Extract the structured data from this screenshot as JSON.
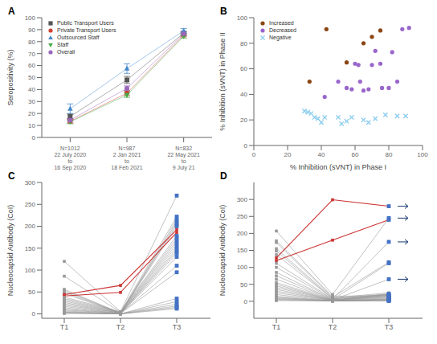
{
  "chart_data": [
    {
      "type": "line",
      "title": "A",
      "ylabel": "Seropositivity (%)",
      "ylim": [
        0,
        100
      ],
      "yticks": [
        0,
        10,
        20,
        30,
        40,
        50,
        60,
        70,
        80,
        90,
        100
      ],
      "grid": false,
      "legend": "upper left",
      "categories": [
        "N=1012\n22 July 2020\nto\n16 Sep 2020",
        "N=987\n2 Jan 2021\nto\n18 Feb 2021",
        "N=832\n22 May 2021\nto\n9 July 21"
      ],
      "series": [
        {
          "name": "Public Transport Users",
          "color": "#555555",
          "marker": "square",
          "values": [
            17.5,
            48.0,
            87.0
          ],
          "yerr": [
            2.0,
            3.0,
            1.5
          ]
        },
        {
          "name": "Private Transport Users",
          "color": "#cc4433",
          "marker": "circle",
          "values": [
            13.5,
            37.0,
            85.5
          ],
          "yerr": [
            1.5,
            2.0,
            1.5
          ]
        },
        {
          "name": "Outsourced Staff",
          "color": "#4488cc",
          "marker": "triangle",
          "values": [
            24.0,
            57.5,
            89.0
          ],
          "yerr": [
            4.0,
            4.0,
            2.0
          ]
        },
        {
          "name": "Staff",
          "color": "#44aa44",
          "marker": "triangle-down",
          "values": [
            13.0,
            35.5,
            84.5
          ],
          "yerr": [
            1.5,
            2.0,
            1.5
          ]
        },
        {
          "name": "Overall",
          "color": "#9966bb",
          "marker": "circle",
          "values": [
            14.5,
            41.0,
            86.5
          ],
          "yerr": [
            1.2,
            2.0,
            1.5
          ]
        }
      ]
    },
    {
      "type": "scatter",
      "title": "B",
      "xlabel": "% Inhibition (sVNT) in Phase I",
      "ylabel": "% Inhibition (sVNT) in Phase II",
      "xlim": [
        0,
        100
      ],
      "ylim": [
        0,
        100
      ],
      "xticks": [
        0,
        20,
        40,
        60,
        80,
        100
      ],
      "yticks": [
        0,
        20,
        40,
        60,
        80,
        100
      ],
      "grid": false,
      "legend": "upper left",
      "series": [
        {
          "name": "Increased",
          "color": "#8B4513",
          "marker": "circle",
          "x": [
            43,
            33,
            55,
            65,
            70,
            75
          ],
          "values": [
            91,
            50,
            65,
            80,
            85,
            90
          ]
        },
        {
          "name": "Decreased",
          "color": "#9966cc",
          "marker": "circle",
          "x": [
            42,
            50,
            55,
            58,
            60,
            62,
            63,
            65,
            68,
            70,
            72,
            75,
            76,
            80,
            82,
            85,
            88,
            92
          ],
          "values": [
            38,
            50,
            45,
            44,
            64,
            63,
            50,
            43,
            44,
            63,
            74,
            64,
            45,
            45,
            73,
            50,
            91,
            92
          ]
        },
        {
          "name": "Negative",
          "color": "#88ccee",
          "marker": "x",
          "x": [
            30,
            32,
            34,
            36,
            38,
            40,
            42,
            50,
            52,
            55,
            58,
            65,
            68,
            72,
            78,
            85,
            90
          ],
          "values": [
            27,
            26,
            25,
            22,
            21,
            18,
            22,
            22,
            17,
            19,
            22,
            20,
            18,
            21,
            24,
            23,
            23
          ]
        }
      ]
    },
    {
      "type": "line",
      "title": "C",
      "ylabel": "Nucleocapsid Antibody (CoI)",
      "ylim": [
        -10,
        300
      ],
      "yticks": [
        0,
        50,
        100,
        150,
        200,
        250,
        300
      ],
      "grid": false,
      "categories": [
        "T1",
        "T2",
        "T3"
      ],
      "series": [
        {
          "color": "#999999",
          "marker": "square",
          "values": [
            120,
            5,
            270
          ]
        },
        {
          "color": "#999999",
          "marker": "square",
          "values": [
            86,
            4,
            222
          ]
        },
        {
          "color": "#999999",
          "marker": "square",
          "values": [
            56,
            2,
            215
          ]
        },
        {
          "color": "#999999",
          "marker": "square",
          "values": [
            53,
            2,
            210
          ]
        },
        {
          "color": "#999999",
          "marker": "square",
          "values": [
            50,
            2,
            205
          ]
        },
        {
          "color": "#999999",
          "marker": "square",
          "values": [
            47,
            1,
            200
          ]
        },
        {
          "color": "#cc3333",
          "marker": "square",
          "values": [
            44,
            65,
            192
          ]
        },
        {
          "color": "#cc3333",
          "marker": "square",
          "values": [
            41,
            49,
            186
          ]
        },
        {
          "color": "#999999",
          "marker": "square",
          "values": [
            38,
            5,
            178
          ]
        },
        {
          "color": "#999999",
          "marker": "square",
          "values": [
            35,
            4,
            172
          ]
        },
        {
          "color": "#999999",
          "marker": "square",
          "values": [
            32,
            3,
            166
          ]
        },
        {
          "color": "#999999",
          "marker": "square",
          "values": [
            29,
            3,
            160
          ]
        },
        {
          "color": "#999999",
          "marker": "square",
          "values": [
            26,
            2,
            154
          ]
        },
        {
          "color": "#999999",
          "marker": "square",
          "values": [
            23,
            2,
            148
          ]
        },
        {
          "color": "#999999",
          "marker": "square",
          "values": [
            20,
            2,
            143
          ]
        },
        {
          "color": "#999999",
          "marker": "square",
          "values": [
            17,
            1,
            138
          ]
        },
        {
          "color": "#999999",
          "marker": "square",
          "values": [
            14,
            1,
            130
          ]
        },
        {
          "color": "#999999",
          "marker": "square",
          "values": [
            11,
            1,
            110
          ]
        },
        {
          "color": "#999999",
          "marker": "square",
          "values": [
            9,
            1,
            95
          ]
        },
        {
          "color": "#999999",
          "marker": "square",
          "values": [
            7,
            0,
            35
          ]
        },
        {
          "color": "#999999",
          "marker": "square",
          "values": [
            5,
            0,
            28
          ]
        },
        {
          "color": "#999999",
          "marker": "square",
          "values": [
            4,
            0,
            22
          ]
        },
        {
          "color": "#999999",
          "marker": "square",
          "values": [
            3,
            0,
            18
          ]
        },
        {
          "color": "#999999",
          "marker": "square",
          "values": [
            2,
            0,
            15
          ]
        },
        {
          "color": "#999999",
          "marker": "square",
          "values": [
            1,
            0,
            12
          ]
        },
        {
          "type": "scatter",
          "color": "#4472c4",
          "marker": "square",
          "x": [
            "T3",
            "T3",
            "T3",
            "T3",
            "T3",
            "T3",
            "T3",
            "T3",
            "T3",
            "T3",
            "T3",
            "T3",
            "T3",
            "T3",
            "T3",
            "T3",
            "T3",
            "T3",
            "T3",
            "T3",
            "T3",
            "T3",
            "T3"
          ],
          "values": [
            270,
            222,
            215,
            210,
            205,
            200,
            178,
            172,
            166,
            160,
            154,
            148,
            143,
            138,
            130,
            110,
            95,
            35,
            28,
            22,
            18,
            15,
            12
          ]
        }
      ]
    },
    {
      "type": "line",
      "title": "D",
      "ylabel": "Nucleocapsid Antibody (CoI)",
      "ylim": [
        -50,
        350
      ],
      "yticks": [
        0,
        50,
        100,
        150,
        200,
        250,
        300
      ],
      "grid": false,
      "categories": [
        "T1",
        "T2",
        "T3"
      ],
      "series": [
        {
          "color": "#999999",
          "marker": "square",
          "values": [
            207,
            20,
            245
          ]
        },
        {
          "color": "#999999",
          "marker": "square",
          "values": [
            178,
            15,
            17
          ]
        },
        {
          "color": "#999999",
          "marker": "square",
          "values": [
            173,
            12,
            115
          ]
        },
        {
          "color": "#999999",
          "marker": "square",
          "values": [
            155,
            10,
            25
          ]
        },
        {
          "color": "#999999",
          "marker": "square",
          "values": [
            148,
            8,
            20
          ]
        },
        {
          "color": "#999999",
          "marker": "square",
          "values": [
            137,
            8,
            22
          ]
        },
        {
          "color": "#cc3333",
          "marker": "square",
          "values": [
            128,
            299,
            280
          ]
        },
        {
          "color": "#cc3333",
          "marker": "square",
          "values": [
            120,
            180,
            240
          ]
        },
        {
          "color": "#999999",
          "marker": "square",
          "values": [
            112,
            7,
            18
          ]
        },
        {
          "color": "#999999",
          "marker": "square",
          "values": [
            100,
            6,
            175
          ]
        },
        {
          "color": "#999999",
          "marker": "square",
          "values": [
            85,
            5,
            15
          ]
        },
        {
          "color": "#999999",
          "marker": "square",
          "values": [
            75,
            5,
            112
          ]
        },
        {
          "color": "#999999",
          "marker": "square",
          "values": [
            65,
            4,
            14
          ]
        },
        {
          "color": "#999999",
          "marker": "square",
          "values": [
            55,
            4,
            65
          ]
        },
        {
          "color": "#999999",
          "marker": "square",
          "values": [
            50,
            3,
            22
          ]
        },
        {
          "color": "#999999",
          "marker": "square",
          "values": [
            45,
            3,
            20
          ]
        },
        {
          "color": "#999999",
          "marker": "square",
          "values": [
            40,
            3,
            18
          ]
        },
        {
          "color": "#999999",
          "marker": "square",
          "values": [
            35,
            2,
            15
          ]
        },
        {
          "color": "#999999",
          "marker": "square",
          "values": [
            30,
            2,
            12
          ]
        },
        {
          "color": "#999999",
          "marker": "square",
          "values": [
            25,
            2,
            10
          ]
        },
        {
          "color": "#999999",
          "marker": "square",
          "values": [
            20,
            1,
            8
          ]
        },
        {
          "color": "#999999",
          "marker": "square",
          "values": [
            15,
            1,
            7
          ]
        },
        {
          "color": "#999999",
          "marker": "square",
          "values": [
            12,
            1,
            6
          ]
        },
        {
          "color": "#999999",
          "marker": "square",
          "values": [
            10,
            1,
            5
          ]
        },
        {
          "color": "#999999",
          "marker": "square",
          "values": [
            8,
            1,
            4
          ]
        },
        {
          "color": "#999999",
          "marker": "square",
          "values": [
            6,
            1,
            3
          ]
        },
        {
          "color": "#999999",
          "marker": "square",
          "values": [
            4,
            1,
            2
          ]
        },
        {
          "color": "#999999",
          "marker": "square",
          "values": [
            2,
            1,
            1
          ]
        },
        {
          "type": "scatter",
          "color": "#4472c4",
          "marker": "square",
          "x": [
            "T3",
            "T3",
            "T3",
            "T3",
            "T3",
            "T3",
            "T3",
            "T3",
            "T3",
            "T3",
            "T3",
            "T3",
            "T3",
            "T3",
            "T3",
            "T3",
            "T3",
            "T3",
            "T3",
            "T3",
            "T3",
            "T3",
            "T3"
          ],
          "values": [
            280,
            245,
            240,
            175,
            115,
            112,
            65,
            22,
            20,
            18,
            17,
            15,
            14,
            12,
            10,
            8,
            7,
            6,
            5,
            4,
            3,
            2,
            1
          ]
        }
      ],
      "annotations": [
        {
          "x": "T3",
          "y": 280,
          "marker": "arrow",
          "color": "#1a3a6e"
        },
        {
          "x": "T3",
          "y": 245,
          "marker": "arrow",
          "color": "#1a3a6e"
        },
        {
          "x": "T3",
          "y": 175,
          "marker": "arrow",
          "color": "#1a3a6e"
        },
        {
          "x": "T3",
          "y": 65,
          "marker": "arrow",
          "color": "#1a3a6e"
        }
      ]
    }
  ]
}
